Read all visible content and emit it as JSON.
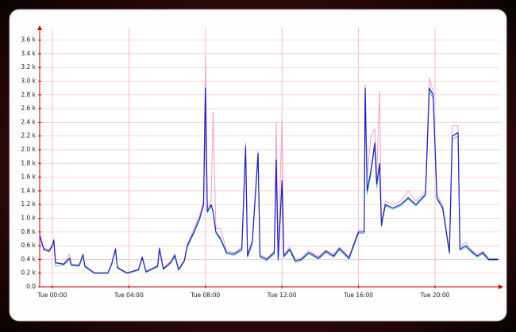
{
  "chart_data": {
    "type": "line",
    "x": [
      -0.66,
      -0.45,
      -0.17,
      0,
      0.08,
      0.17,
      0.6,
      0.9,
      1.0,
      1.4,
      1.6,
      1.7,
      2.2,
      2.9,
      3.1,
      3.3,
      3.4,
      3.9,
      4.5,
      4.7,
      4.9,
      5.5,
      5.6,
      5.8,
      6.2,
      6.4,
      6.6,
      6.9,
      7.05,
      7.4,
      7.7,
      7.9,
      8.0,
      8.1,
      8.3,
      8.4,
      8.55,
      8.8,
      9.1,
      9.5,
      9.9,
      10.1,
      10.2,
      10.45,
      10.75,
      10.85,
      11.2,
      11.6,
      11.7,
      11.8,
      12.0,
      12.1,
      12.4,
      12.7,
      13.0,
      13.4,
      13.9,
      14.3,
      14.7,
      15.0,
      15.5,
      16.0,
      16.3,
      16.35,
      16.45,
      16.65,
      16.85,
      16.95,
      17.1,
      17.2,
      17.4,
      17.8,
      18.2,
      18.6,
      19.0,
      19.5,
      19.7,
      19.9,
      20.1,
      20.4,
      20.75,
      20.9,
      21.2,
      21.3,
      21.6,
      21.9,
      22.2,
      22.5,
      22.8,
      23.3
    ],
    "series": [
      {
        "color": "#f0a0c8",
        "values": [
          780,
          570,
          540,
          620,
          700,
          360,
          340,
          480,
          330,
          320,
          480,
          310,
          210,
          210,
          340,
          570,
          290,
          210,
          260,
          450,
          230,
          310,
          580,
          270,
          380,
          480,
          260,
          400,
          620,
          850,
          1050,
          1250,
          3350,
          1150,
          1250,
          2550,
          850,
          850,
          530,
          500,
          580,
          2100,
          470,
          680,
          1980,
          470,
          420,
          520,
          2400,
          420,
          2450,
          470,
          580,
          400,
          420,
          530,
          440,
          540,
          470,
          580,
          440,
          830,
          830,
          2950,
          1600,
          2200,
          2300,
          1600,
          2850,
          950,
          1250,
          1200,
          1250,
          1400,
          1250,
          1400,
          3050,
          2850,
          1350,
          1200,
          520,
          2350,
          2350,
          580,
          650,
          540,
          470,
          520,
          420,
          410
        ]
      },
      {
        "color": "#40d0b0",
        "values": [
          740,
          540,
          510,
          590,
          670,
          300,
          320,
          400,
          310,
          300,
          450,
          290,
          195,
          195,
          320,
          530,
          270,
          195,
          240,
          420,
          210,
          290,
          540,
          250,
          350,
          440,
          240,
          370,
          580,
          780,
          980,
          1180,
          2800,
          1080,
          1180,
          1080,
          780,
          680,
          480,
          460,
          530,
          2000,
          430,
          630,
          1900,
          430,
          380,
          480,
          1800,
          380,
          1500,
          430,
          530,
          360,
          380,
          480,
          400,
          500,
          430,
          540,
          400,
          780,
          780,
          2850,
          1350,
          1650,
          2050,
          1450,
          1750,
          880,
          1180,
          1130,
          1180,
          1280,
          1180,
          1330,
          2850,
          2750,
          1280,
          1130,
          480,
          2150,
          2200,
          530,
          580,
          500,
          430,
          480,
          380,
          390
        ]
      },
      {
        "color": "#2020c0",
        "values": [
          750,
          550,
          520,
          600,
          680,
          350,
          330,
          420,
          320,
          310,
          470,
          300,
          200,
          200,
          330,
          550,
          280,
          200,
          250,
          430,
          220,
          300,
          560,
          260,
          360,
          460,
          250,
          380,
          600,
          800,
          1000,
          1200,
          2900,
          1100,
          1200,
          1100,
          800,
          700,
          500,
          480,
          550,
          2050,
          450,
          650,
          1950,
          450,
          400,
          500,
          1850,
          400,
          1550,
          450,
          550,
          380,
          400,
          500,
          420,
          520,
          450,
          560,
          420,
          800,
          800,
          2900,
          1400,
          1700,
          2100,
          1500,
          1800,
          900,
          1200,
          1150,
          1200,
          1300,
          1200,
          1350,
          2900,
          2800,
          1300,
          1150,
          500,
          2200,
          2250,
          550,
          600,
          520,
          450,
          500,
          400,
          400
        ]
      }
    ],
    "xlim": [
      -0.66,
      23.4
    ],
    "xticks": [
      {
        "value": 0,
        "label": "Tue 00:00"
      },
      {
        "value": 4,
        "label": "Tue 04:00"
      },
      {
        "value": 8,
        "label": "Tue 08:00"
      },
      {
        "value": 12,
        "label": "Tue 12:00"
      },
      {
        "value": 16,
        "label": "Tue 16:00"
      },
      {
        "value": 20,
        "label": "Tue 20:00"
      }
    ],
    "ylim": [
      0,
      3780
    ],
    "yticks": [
      {
        "value": 0,
        "label": "0.0"
      },
      {
        "value": 200,
        "label": "0.2 k"
      },
      {
        "value": 400,
        "label": "0.4 k"
      },
      {
        "value": 600,
        "label": "0.6 k"
      },
      {
        "value": 800,
        "label": "0.8 k"
      },
      {
        "value": 1000,
        "label": "1.0 k"
      },
      {
        "value": 1200,
        "label": "1.2 k"
      },
      {
        "value": 1400,
        "label": "1.4 k"
      },
      {
        "value": 1600,
        "label": "1.6 k"
      },
      {
        "value": 1800,
        "label": "1.8 k"
      },
      {
        "value": 2000,
        "label": "2.0 k"
      },
      {
        "value": 2200,
        "label": "2.2 k"
      },
      {
        "value": 2400,
        "label": "2.4 k"
      },
      {
        "value": 2600,
        "label": "2.6 k"
      },
      {
        "value": 2800,
        "label": "2.8 k"
      },
      {
        "value": 3000,
        "label": "3.0 k"
      },
      {
        "value": 3200,
        "label": "3.2 k"
      },
      {
        "value": 3400,
        "label": "3.4 k"
      },
      {
        "value": 3600,
        "label": "3.6 k"
      }
    ],
    "grid": true
  }
}
